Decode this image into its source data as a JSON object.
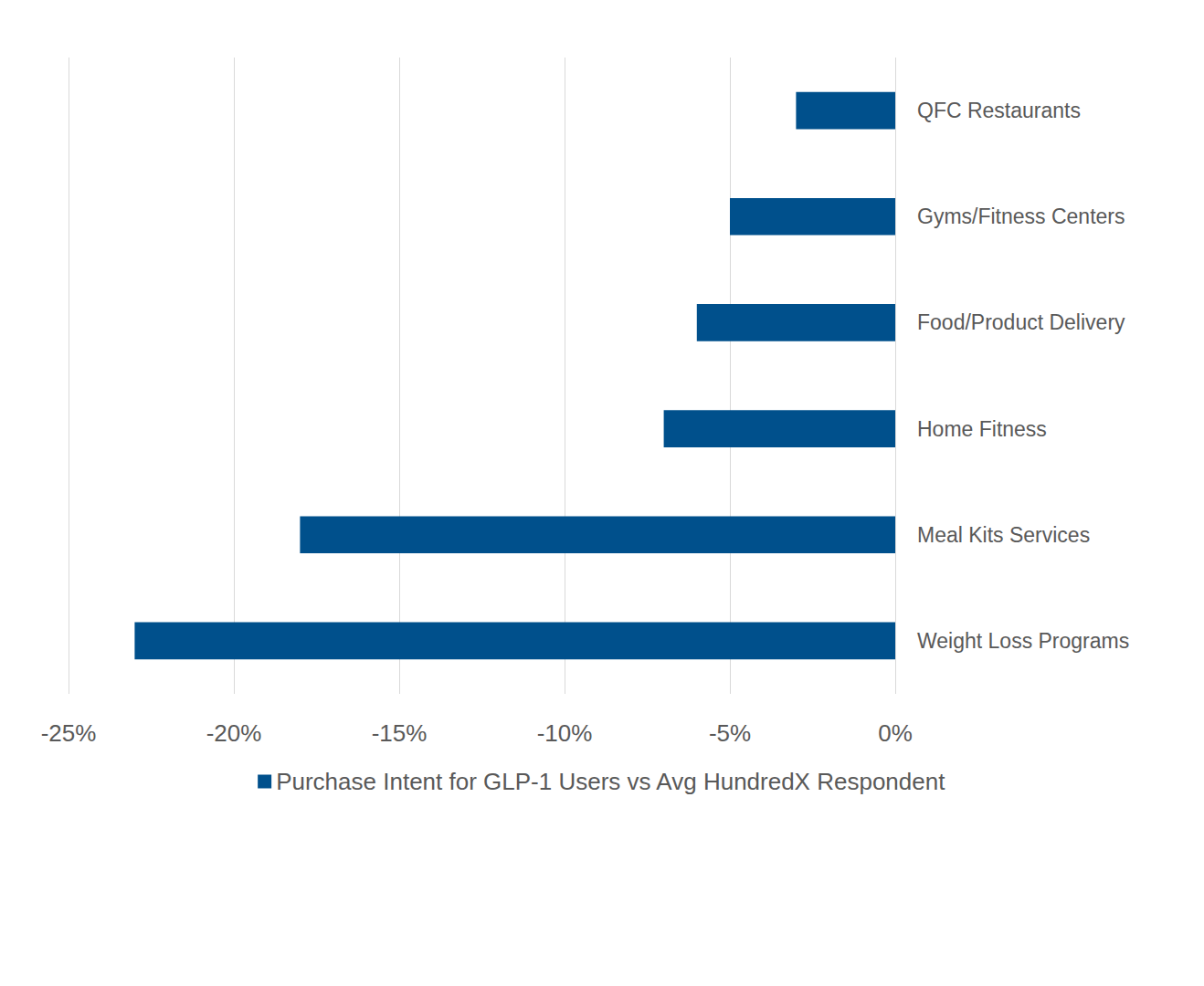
{
  "chart_data": {
    "type": "bar",
    "orientation": "horizontal",
    "categories": [
      "QFC Restaurants",
      "Gyms/Fitness Centers",
      "Food/Product Delivery",
      "Home Fitness",
      "Meal Kits Services",
      "Weight Loss Programs"
    ],
    "series": [
      {
        "name": "Purchase Intent for GLP-1 Users vs Avg HundredX Respondent",
        "color": "#00508c",
        "values": [
          -3,
          -5,
          -6,
          -7,
          -18,
          -23
        ]
      }
    ],
    "xlim": [
      -25,
      0
    ],
    "xticks": [
      {
        "value": -25,
        "label": "-25%"
      },
      {
        "value": -20,
        "label": "-20%"
      },
      {
        "value": -15,
        "label": "-15%"
      },
      {
        "value": -10,
        "label": "-10%"
      },
      {
        "value": -5,
        "label": "-5%"
      },
      {
        "value": 0,
        "label": "0%"
      }
    ],
    "grid": true,
    "legend": "bottom"
  }
}
